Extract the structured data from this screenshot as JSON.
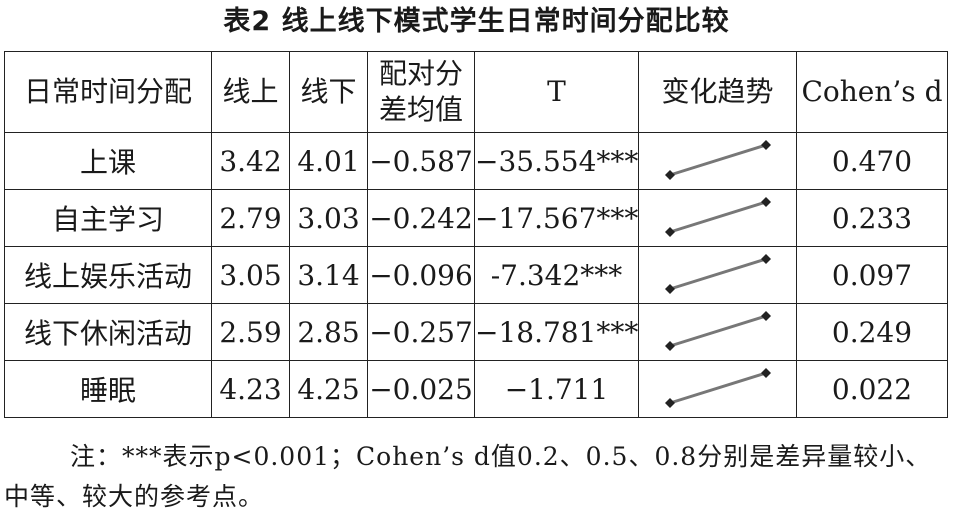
{
  "title": "表2   线上线下模式学生日常时间分配比较",
  "table": {
    "headers": {
      "col1": "日常时间分配",
      "col2": "线上",
      "col3": "线下",
      "col4": "配对分差均值",
      "col5": "T",
      "col6": "变化趋势",
      "col7": "Cohen’s d"
    },
    "rows": [
      {
        "category": "上课",
        "online": "3.42",
        "offline": "4.01",
        "diff": "−0.587",
        "t": "−35.554***",
        "d": "0.470"
      },
      {
        "category": "自主学习",
        "online": "2.79",
        "offline": "3.03",
        "diff": "−0.242",
        "t": "−17.567***",
        "d": "0.233"
      },
      {
        "category": "线上娱乐活动",
        "online": "3.05",
        "offline": "3.14",
        "diff": "−0.096",
        "t": "-7.342***",
        "d": "0.097"
      },
      {
        "category": "线下休闲活动",
        "online": "2.59",
        "offline": "2.85",
        "diff": "−0.257",
        "t": "−18.781***",
        "d": "0.249"
      },
      {
        "category": "睡眠",
        "online": "4.23",
        "offline": "4.25",
        "diff": "−0.025",
        "t": "−1.711",
        "d": "0.022"
      }
    ]
  },
  "note": "注：***表示p<0.001；Cohen’s d值0.2、0.5、0.8分别是差异量较小、中等、较大的参考点。",
  "colors": {
    "trend_line": "#777777",
    "trend_marker": "#222222"
  }
}
